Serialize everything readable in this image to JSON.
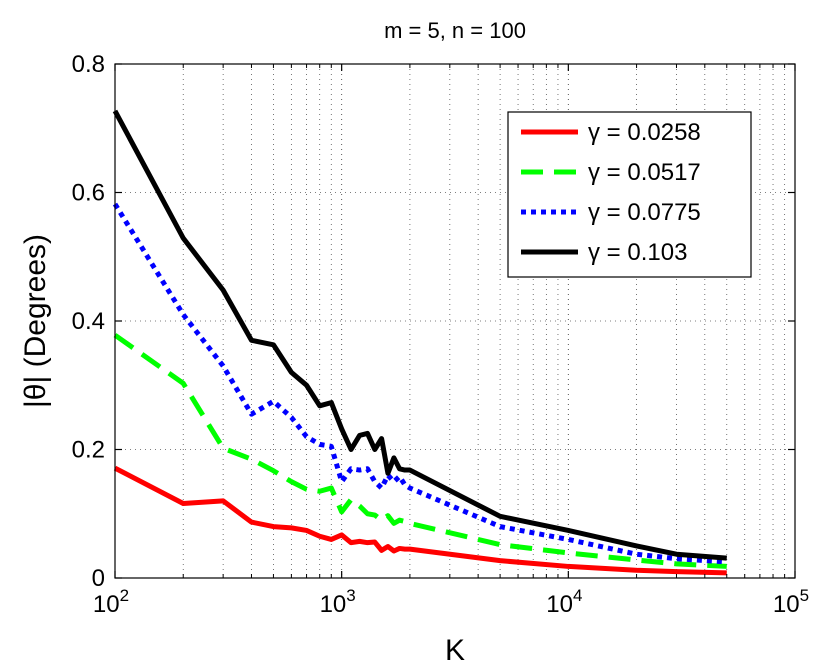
{
  "chart_data": {
    "type": "line",
    "title": "m = 5, n = 100",
    "xlabel": "K",
    "ylabel": "|θ| (Degrees)",
    "xscale": "log",
    "xlim": [
      100,
      100000
    ],
    "ylim": [
      0,
      0.8
    ],
    "grid": "on",
    "legend_position": "top-right",
    "x_ticks": [
      {
        "value": 100,
        "base": "10",
        "exp": "2"
      },
      {
        "value": 1000,
        "base": "10",
        "exp": "3"
      },
      {
        "value": 10000,
        "base": "10",
        "exp": "4"
      },
      {
        "value": 100000,
        "base": "10",
        "exp": "5"
      }
    ],
    "y_ticks": [
      {
        "value": 0,
        "label": "0"
      },
      {
        "value": 0.2,
        "label": "0.2"
      },
      {
        "value": 0.4,
        "label": "0.4"
      },
      {
        "value": 0.6,
        "label": "0.6"
      },
      {
        "value": 0.8,
        "label": "0.8"
      }
    ],
    "series": [
      {
        "name": "γ = 0.0258",
        "color": "#ff0000",
        "dash": "solid",
        "x": [
          100,
          200,
          300,
          400,
          500,
          600,
          700,
          800,
          900,
          1000,
          1100,
          1200,
          1300,
          1400,
          1500,
          1600,
          1700,
          1800,
          1900,
          2000,
          5000,
          10000,
          20000,
          30000,
          50000
        ],
        "y": [
          0.171,
          0.116,
          0.12,
          0.087,
          0.08,
          0.078,
          0.074,
          0.065,
          0.06,
          0.067,
          0.055,
          0.057,
          0.055,
          0.056,
          0.043,
          0.049,
          0.042,
          0.046,
          0.045,
          0.045,
          0.027,
          0.018,
          0.012,
          0.01,
          0.008
        ]
      },
      {
        "name": "γ = 0.0517",
        "color": "#00ff00",
        "dash": "dashed",
        "x": [
          100,
          200,
          300,
          400,
          500,
          600,
          700,
          800,
          900,
          1000,
          1100,
          1200,
          1300,
          1400,
          1500,
          1600,
          1700,
          1800,
          1900,
          2000,
          5000,
          10000,
          20000,
          30000,
          50000
        ],
        "y": [
          0.378,
          0.303,
          0.202,
          0.185,
          0.167,
          0.15,
          0.138,
          0.135,
          0.14,
          0.103,
          0.122,
          0.112,
          0.1,
          0.098,
          0.09,
          0.097,
          0.085,
          0.09,
          0.088,
          0.085,
          0.052,
          0.039,
          0.028,
          0.022,
          0.018
        ]
      },
      {
        "name": "γ = 0.0775",
        "color": "#0000ff",
        "dash": "dotted",
        "x": [
          100,
          200,
          300,
          400,
          500,
          600,
          700,
          800,
          900,
          1000,
          1100,
          1200,
          1300,
          1400,
          1500,
          1600,
          1700,
          1800,
          1900,
          2000,
          5000,
          10000,
          20000,
          30000,
          50000
        ],
        "y": [
          0.582,
          0.41,
          0.33,
          0.255,
          0.275,
          0.25,
          0.22,
          0.208,
          0.205,
          0.15,
          0.17,
          0.168,
          0.17,
          0.15,
          0.14,
          0.16,
          0.15,
          0.158,
          0.145,
          0.14,
          0.08,
          0.06,
          0.037,
          0.03,
          0.025
        ]
      },
      {
        "name": "γ = 0.103",
        "color": "#000000",
        "dash": "solid",
        "x": [
          100,
          200,
          300,
          400,
          500,
          600,
          700,
          800,
          900,
          1000,
          1100,
          1200,
          1300,
          1400,
          1500,
          1600,
          1700,
          1800,
          1900,
          2000,
          5000,
          10000,
          20000,
          30000,
          50000
        ],
        "y": [
          0.727,
          0.529,
          0.448,
          0.37,
          0.363,
          0.32,
          0.3,
          0.268,
          0.273,
          0.232,
          0.2,
          0.222,
          0.225,
          0.2,
          0.217,
          0.163,
          0.187,
          0.17,
          0.168,
          0.168,
          0.096,
          0.074,
          0.05,
          0.037,
          0.031
        ]
      }
    ]
  }
}
